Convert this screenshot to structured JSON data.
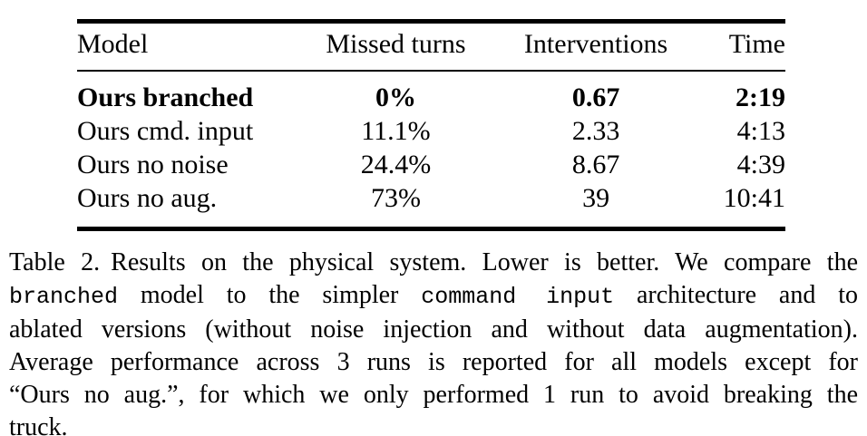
{
  "colors": {
    "text": "#000000",
    "background": "#ffffff"
  },
  "table": {
    "headers": [
      "Model",
      "Missed turns",
      "Interventions",
      "Time"
    ],
    "rows": [
      {
        "model": "Ours branched",
        "missed_turns": "0%",
        "interventions": "0.67",
        "time": "2:19",
        "bold": true
      },
      {
        "model": "Ours cmd. input",
        "missed_turns": "11.1%",
        "interventions": "2.33",
        "time": "4:13",
        "bold": false
      },
      {
        "model": "Ours no noise",
        "missed_turns": "24.4%",
        "interventions": "8.67",
        "time": "4:39",
        "bold": false
      },
      {
        "model": "Ours no aug.",
        "missed_turns": "73%",
        "interventions": "39",
        "time": "10:41",
        "bold": false
      }
    ]
  },
  "caption": {
    "label": "Table 2.",
    "line1": "Results on the physical system. Lower is better. We compare the",
    "line2_mono1": "branched",
    "line2_mid": " model to the simpler ",
    "line2_mono2": "command input",
    "line2_end": " architecture and to",
    "line3": "ablated versions (without noise injection and without data augmentation).",
    "line4": "Average performance across 3 runs is reported for all models except for",
    "line5": "“Ours no aug.”, for which we only performed 1 run to avoid breaking the",
    "line6": "truck."
  }
}
